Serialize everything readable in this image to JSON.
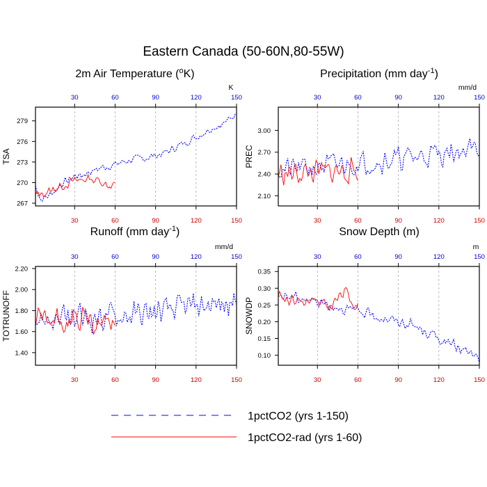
{
  "figure": {
    "title": "Eastern Canada (50-60N,80-55W)"
  },
  "legend": [
    {
      "name": "1pctCO2 (yrs 1-150)",
      "color": "#0000ff",
      "style": "dashed"
    },
    {
      "name": "1pctCO2-rad (yrs 1-60)",
      "color": "#ff0000",
      "style": "solid"
    }
  ],
  "chart_data": [
    {
      "type": "line",
      "title": "2m Air Temperature (",
      "title_sup": "o",
      "title_tail": "K)",
      "ylabel": "TSA",
      "unit": "K",
      "xlim": [
        1,
        150
      ],
      "ylim": [
        266.6,
        281
      ],
      "yticks": [
        267,
        270,
        273,
        276,
        279
      ],
      "ytick_labels": [
        "267",
        "270",
        "273",
        "276",
        "279"
      ],
      "xticks": [
        30,
        60,
        90,
        120,
        150
      ],
      "xtick_labels_top": [
        "30",
        "60",
        "90",
        "120",
        "150"
      ],
      "xtick_labels_bottom": [
        "30",
        "60",
        "90",
        "120",
        "150"
      ],
      "series": [
        {
          "name": "1pctCO2 (yrs 1-150)",
          "keys": [
            [
              1,
              269.5
            ],
            [
              5,
              267.5
            ],
            [
              10,
              268
            ],
            [
              15,
              268.8
            ],
            [
              20,
              269.8
            ],
            [
              25,
              270.3
            ],
            [
              30,
              271
            ],
            [
              35,
              271
            ],
            [
              40,
              271.5
            ],
            [
              45,
              271.8
            ],
            [
              50,
              272.2
            ],
            [
              55,
              272.4
            ],
            [
              60,
              272.6
            ],
            [
              65,
              273
            ],
            [
              70,
              273.2
            ],
            [
              75,
              273.4
            ],
            [
              80,
              273.5
            ],
            [
              85,
              273.7
            ],
            [
              90,
              274
            ],
            [
              95,
              274.2
            ],
            [
              100,
              274.6
            ],
            [
              105,
              275.2
            ],
            [
              110,
              275.6
            ],
            [
              115,
              276.2
            ],
            [
              120,
              276.6
            ],
            [
              125,
              277.2
            ],
            [
              130,
              277.8
            ],
            [
              135,
              278.2
            ],
            [
              140,
              278.6
            ],
            [
              145,
              279.2
            ],
            [
              150,
              280.2
            ]
          ],
          "noise": 0.7,
          "seed": 7
        },
        {
          "name": "1pctCO2-rad (yrs 1-60)",
          "keys": [
            [
              1,
              268.2
            ],
            [
              10,
              268.6
            ],
            [
              20,
              269.5
            ],
            [
              30,
              270.2
            ],
            [
              40,
              270.6
            ],
            [
              50,
              270.2
            ],
            [
              55,
              269.5
            ],
            [
              60,
              270
            ]
          ],
          "noise": 0.8,
          "seed": 13
        }
      ]
    },
    {
      "type": "line",
      "title": "Precipitation (mm day",
      "title_sup": "-1",
      "title_tail": ")",
      "ylabel": "PREC",
      "unit": "mm/d",
      "xlim": [
        1,
        150
      ],
      "ylim": [
        1.96,
        3.32
      ],
      "yticks": [
        2.1,
        2.4,
        2.7,
        3.0
      ],
      "ytick_labels": [
        "2.10",
        "2.40",
        "2.70",
        "3.00"
      ],
      "xticks": [
        30,
        60,
        90,
        120,
        150
      ],
      "xtick_labels_top": [
        "30",
        "60",
        "90",
        "120",
        "150"
      ],
      "xtick_labels_bottom": [
        "30",
        "60",
        "90",
        "120",
        "150"
      ],
      "series": [
        {
          "name": "1pctCO2 (yrs 1-150)",
          "keys": [
            [
              1,
              2.45
            ],
            [
              30,
              2.5
            ],
            [
              60,
              2.55
            ],
            [
              90,
              2.6
            ],
            [
              120,
              2.68
            ],
            [
              150,
              2.75
            ]
          ],
          "noise": 0.2,
          "seed": 21
        },
        {
          "name": "1pctCO2-rad (yrs 1-60)",
          "keys": [
            [
              1,
              2.4
            ],
            [
              30,
              2.42
            ],
            [
              60,
              2.45
            ]
          ],
          "noise": 0.2,
          "seed": 33
        }
      ]
    },
    {
      "type": "line",
      "title": "Runoff (mm day",
      "title_sup": "-1",
      "title_tail": ")",
      "ylabel": "TOTRUNOFF",
      "unit": "mm/d",
      "xlim": [
        1,
        150
      ],
      "ylim": [
        1.28,
        2.22
      ],
      "yticks": [
        1.4,
        1.6,
        1.8,
        2.0,
        2.2
      ],
      "ytick_labels": [
        "1.40",
        "1.60",
        "1.80",
        "2.00",
        "2.20"
      ],
      "xticks": [
        30,
        60,
        90,
        120,
        150
      ],
      "xtick_labels_top": [
        "30",
        "60",
        "90",
        "120",
        "150"
      ],
      "xtick_labels_bottom": [
        "30",
        "60",
        "90",
        "120",
        "150"
      ],
      "series": [
        {
          "name": "1pctCO2 (yrs 1-150)",
          "keys": [
            [
              1,
              1.72
            ],
            [
              30,
              1.72
            ],
            [
              60,
              1.75
            ],
            [
              90,
              1.78
            ],
            [
              120,
              1.85
            ],
            [
              150,
              1.86
            ]
          ],
          "noise": 0.16,
          "seed": 45
        },
        {
          "name": "1pctCO2-rad (yrs 1-60)",
          "keys": [
            [
              1,
              1.68
            ],
            [
              30,
              1.7
            ],
            [
              60,
              1.68
            ]
          ],
          "noise": 0.16,
          "seed": 57
        }
      ]
    },
    {
      "type": "line",
      "title": "Snow Depth (m)",
      "title_sup": "",
      "title_tail": "",
      "ylabel": "SNOWDP",
      "unit": "m",
      "xlim": [
        1,
        150
      ],
      "ylim": [
        0.07,
        0.365
      ],
      "yticks": [
        0.1,
        0.15,
        0.2,
        0.25,
        0.3,
        0.35
      ],
      "ytick_labels": [
        "0.10",
        "0.15",
        "0.20",
        "0.25",
        "0.30",
        "0.35"
      ],
      "xticks": [
        30,
        60,
        90,
        120,
        150
      ],
      "xtick_labels_top": [
        "30",
        "60",
        "90",
        "120",
        "150"
      ],
      "xtick_labels_bottom": [
        "30",
        "60",
        "90",
        "120",
        "150"
      ],
      "series": [
        {
          "name": "1pctCO2 (yrs 1-150)",
          "keys": [
            [
              1,
              0.28
            ],
            [
              20,
              0.27
            ],
            [
              40,
              0.25
            ],
            [
              60,
              0.23
            ],
            [
              80,
              0.21
            ],
            [
              100,
              0.19
            ],
            [
              110,
              0.17
            ],
            [
              120,
              0.15
            ],
            [
              130,
              0.13
            ],
            [
              140,
              0.11
            ],
            [
              150,
              0.09
            ]
          ],
          "noise": 0.02,
          "seed": 69
        },
        {
          "name": "1pctCO2-rad (yrs 1-60)",
          "keys": [
            [
              1,
              0.28
            ],
            [
              20,
              0.26
            ],
            [
              40,
              0.245
            ],
            [
              50,
              0.29
            ],
            [
              60,
              0.245
            ]
          ],
          "noise": 0.025,
          "seed": 81
        }
      ]
    }
  ]
}
